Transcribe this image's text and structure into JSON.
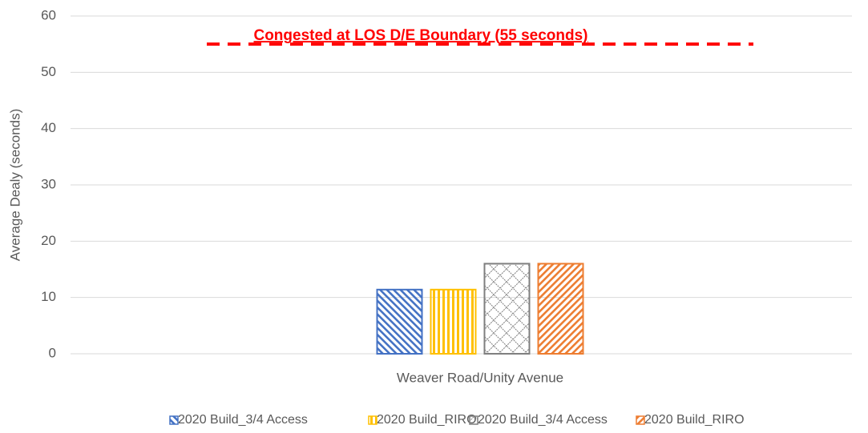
{
  "chart_data": {
    "type": "bar",
    "categories": [
      "Weaver Road/Unity Avenue"
    ],
    "y_label": "Average Dealy (seconds)",
    "series": [
      {
        "name": "2020 Build_3/4 Access",
        "color": "#4472c4",
        "pattern": "diagonal-down",
        "values": [
          11.4
        ]
      },
      {
        "name": "2020 Build_RIRO",
        "color": "#ffc000",
        "pattern": "vertical",
        "values": [
          11.4
        ]
      },
      {
        "name": "2020 Build_3/4 Access",
        "color": "#7f7f7f",
        "pattern": "lattice",
        "values": [
          16
        ]
      },
      {
        "name": "2020 Build_RIRO",
        "color": "#ed7d31",
        "pattern": "diagonal-up",
        "values": [
          16
        ]
      }
    ],
    "reference_line": {
      "value": 55,
      "label": "Congested at LOS D/E Boundary (55 seconds)",
      "color": "#ff0000"
    },
    "ylim": [
      0,
      60
    ],
    "yticks": [
      0,
      10,
      20,
      30,
      40,
      50,
      60
    ],
    "grid": true,
    "legend": "bottom"
  }
}
